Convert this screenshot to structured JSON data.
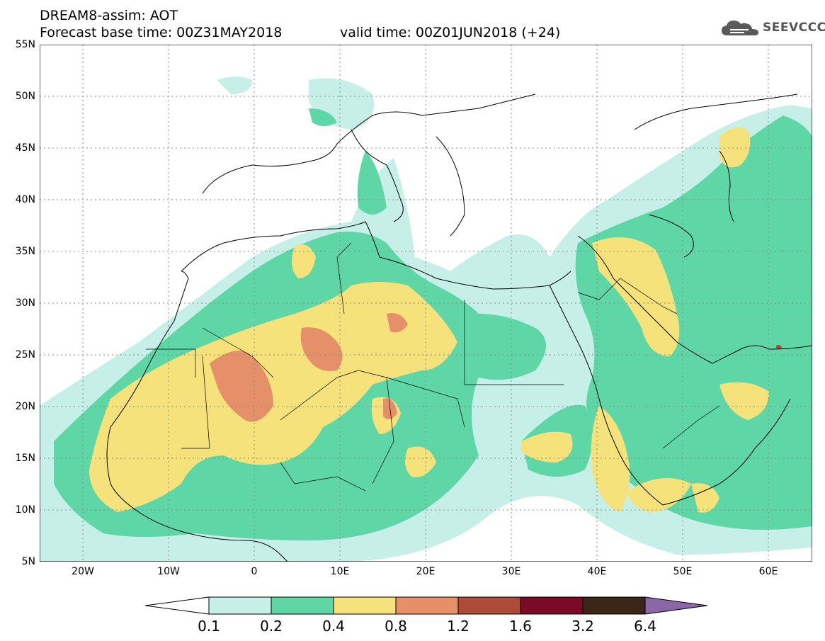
{
  "header": {
    "title": "DREAM8-assim: AOT",
    "base_time": "Forecast base time: 00Z31MAY2018",
    "valid_time": "valid time: 00Z01JUN2018 (+24)",
    "logo_text": "SEEVCCC"
  },
  "map": {
    "lat_labels": [
      "55N",
      "50N",
      "45N",
      "40N",
      "35N",
      "30N",
      "25N",
      "20N",
      "15N",
      "10N",
      "5N"
    ],
    "lon_labels": [
      "20W",
      "10W",
      "0",
      "10E",
      "20E",
      "30E",
      "40E",
      "50E",
      "60E"
    ],
    "lat_range": [
      5,
      55
    ],
    "lon_range": [
      -25,
      65
    ]
  },
  "legend": {
    "labels": [
      "0.1",
      "0.2",
      "0.4",
      "0.8",
      "1.2",
      "1.6",
      "3.2",
      "6.4"
    ],
    "colors": [
      "#ffffff",
      "#c6efe8",
      "#5ed6a6",
      "#f5e27a",
      "#e6906a",
      "#ad4a38",
      "#7a0a26",
      "#3b2516",
      "#8c67a8"
    ]
  },
  "icons": [
    "cloud-logo-icon"
  ]
}
